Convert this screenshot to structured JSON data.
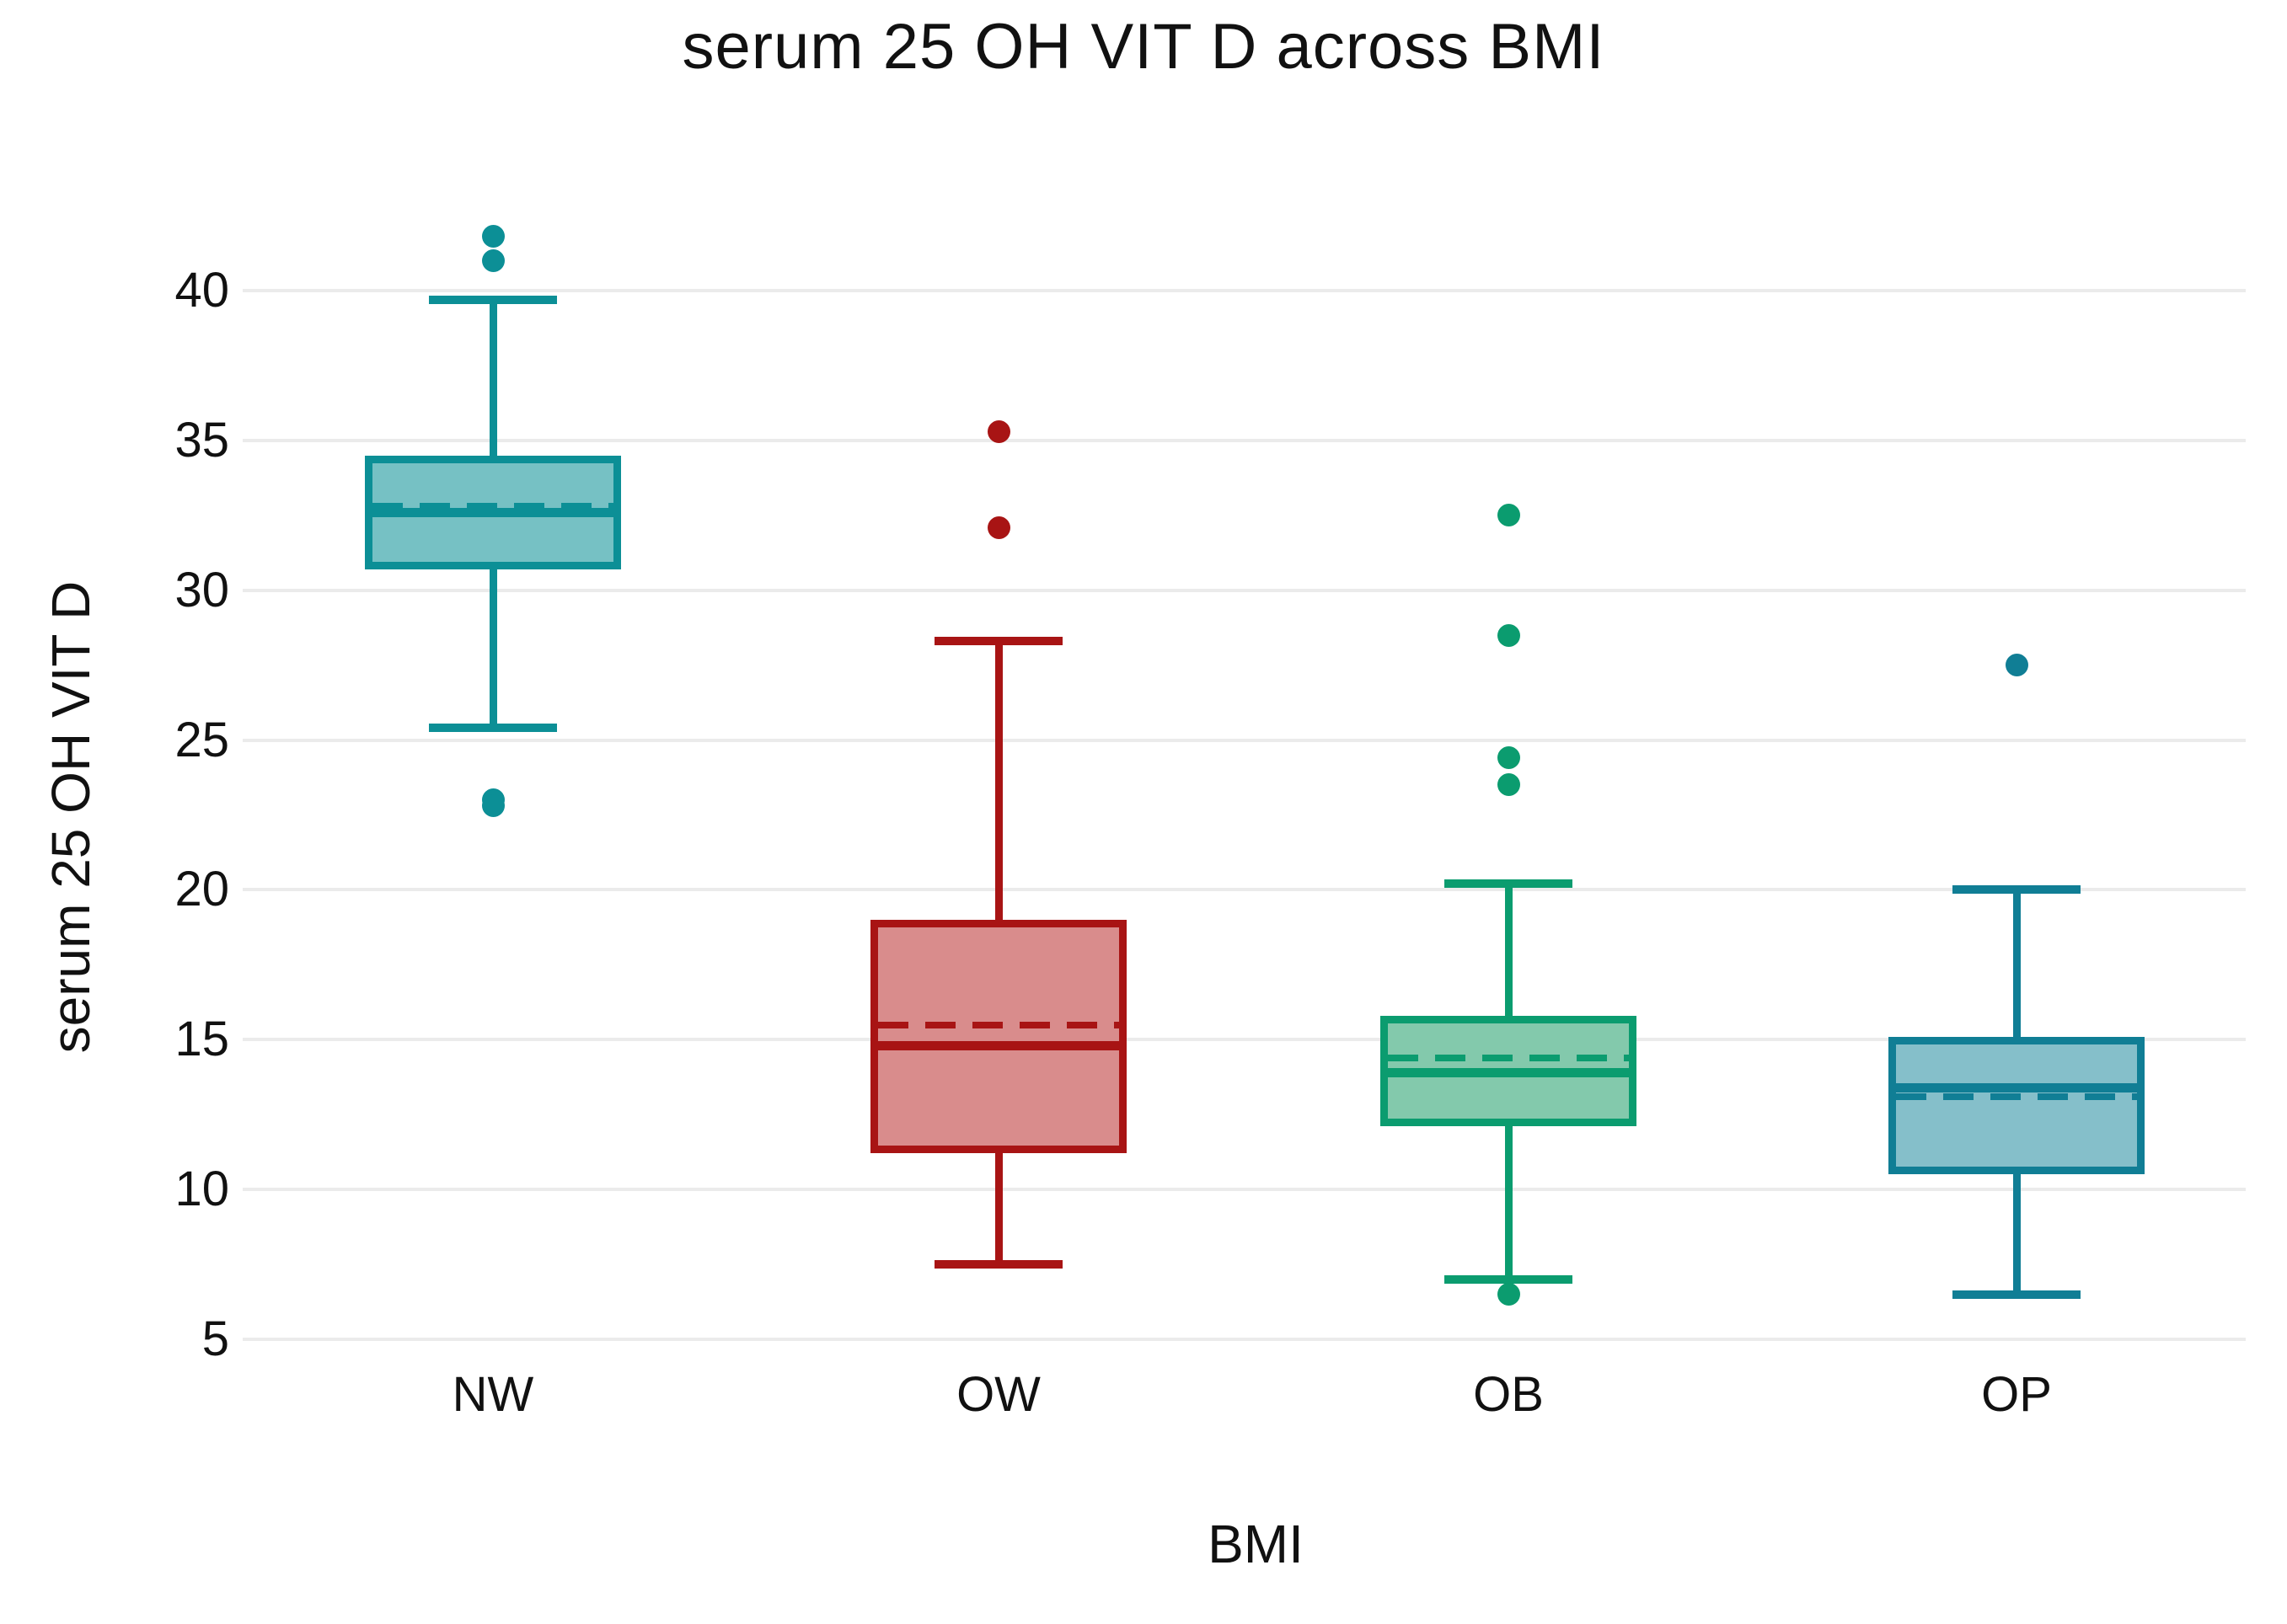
{
  "title": "serum 25 OH VIT D across BMI",
  "y_axis": {
    "label": "serum 25 OH VIT D",
    "ticks": [
      40,
      35,
      30,
      25,
      20,
      15,
      10,
      5
    ]
  },
  "x_axis": {
    "label": "BMI",
    "categories": [
      "NW",
      "OW",
      "OB",
      "OP"
    ]
  },
  "colors": {
    "gridline": "#ebebeb",
    "text": "#111111"
  },
  "chart_data": {
    "type": "box",
    "title": "serum 25 OH VIT D across BMI",
    "xlabel": "BMI",
    "ylabel": "serum 25 OH VIT D",
    "ylim": [
      5,
      43
    ],
    "yticks": [
      5,
      10,
      15,
      20,
      25,
      30,
      35,
      40
    ],
    "grid": "horizontal",
    "legend": "none",
    "mean_style": "dashed",
    "categories": [
      "NW",
      "OW",
      "OB",
      "OP"
    ],
    "series": [
      {
        "name": "NW",
        "q1": 30.7,
        "median": 32.6,
        "mean": 32.8,
        "q3": 34.5,
        "whisker_low": 25.4,
        "whisker_high": 39.7,
        "outliers": [
          41.8,
          41.0,
          23.0,
          22.8
        ],
        "stroke": "#0c8f96",
        "fill": "#76c1c4"
      },
      {
        "name": "OW",
        "q1": 11.2,
        "median": 14.8,
        "mean": 15.5,
        "q3": 19.0,
        "whisker_low": 7.5,
        "whisker_high": 28.3,
        "outliers": [
          35.3,
          32.1
        ],
        "stroke": "#a81414",
        "fill": "#d98c8c"
      },
      {
        "name": "OB",
        "q1": 12.1,
        "median": 13.9,
        "mean": 14.4,
        "q3": 15.8,
        "whisker_low": 7.0,
        "whisker_high": 20.2,
        "outliers": [
          32.5,
          28.5,
          24.4,
          23.5,
          6.5
        ],
        "stroke": "#0b9c6f",
        "fill": "#83c9ac"
      },
      {
        "name": "OP",
        "q1": 10.5,
        "median": 13.4,
        "mean": 13.1,
        "q3": 15.1,
        "whisker_low": 6.5,
        "whisker_high": 20.0,
        "outliers": [
          27.5
        ],
        "stroke": "#107e95",
        "fill": "#85bfca"
      }
    ]
  }
}
